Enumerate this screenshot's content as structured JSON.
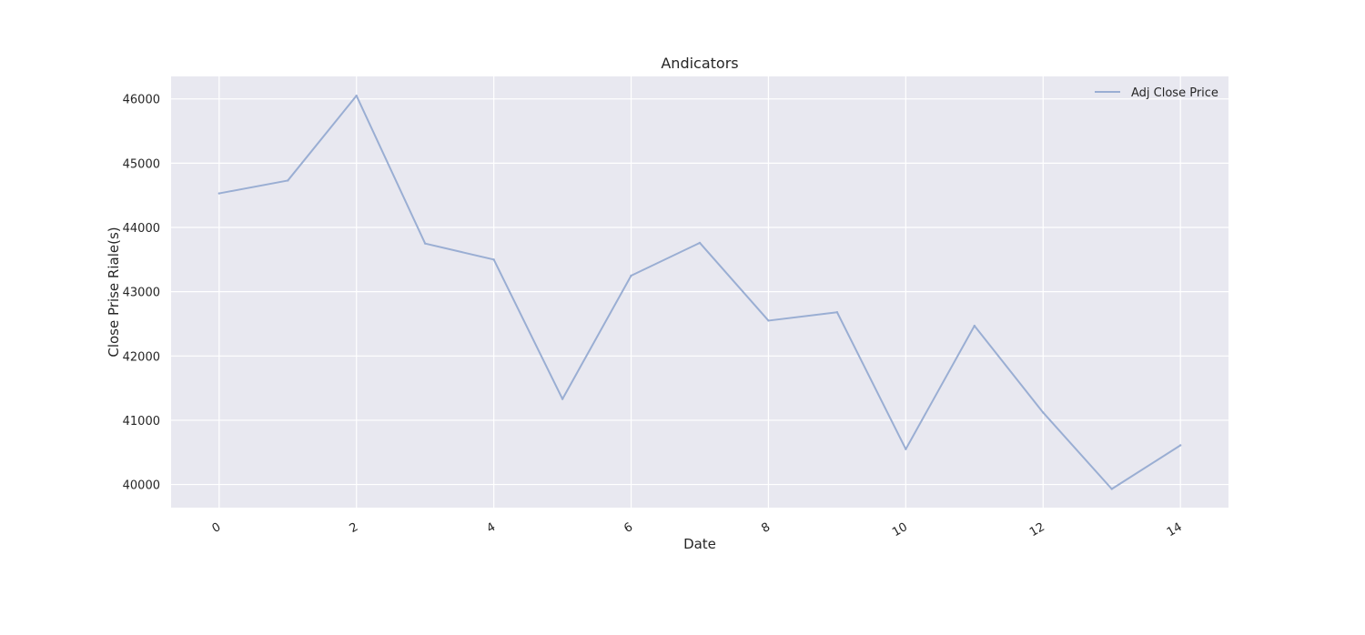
{
  "chart_data": {
    "type": "line",
    "title": "Andicators",
    "xlabel": "Date",
    "ylabel": "Close Prise Riale(s)",
    "x": [
      0,
      1,
      2,
      3,
      4,
      5,
      6,
      7,
      8,
      9,
      10,
      11,
      12,
      13,
      14
    ],
    "series": [
      {
        "name": "Adj Close Price",
        "color": "#9aaed3",
        "values": [
          44530,
          44730,
          46050,
          43750,
          43500,
          41330,
          43250,
          43760,
          42550,
          42680,
          40550,
          42470,
          41120,
          39930,
          40610
        ]
      }
    ],
    "xticks": [
      "0",
      "2",
      "4",
      "6",
      "8",
      "10",
      "12",
      "14"
    ],
    "yticks": [
      "40000",
      "41000",
      "42000",
      "43000",
      "44000",
      "45000",
      "46000"
    ],
    "xlim": [
      -0.7,
      14.7
    ],
    "ylim": [
      39640,
      46350
    ],
    "grid": true,
    "legend_position": "top-right",
    "background": "#e8e8f0",
    "grid_color": "#ffffff"
  }
}
